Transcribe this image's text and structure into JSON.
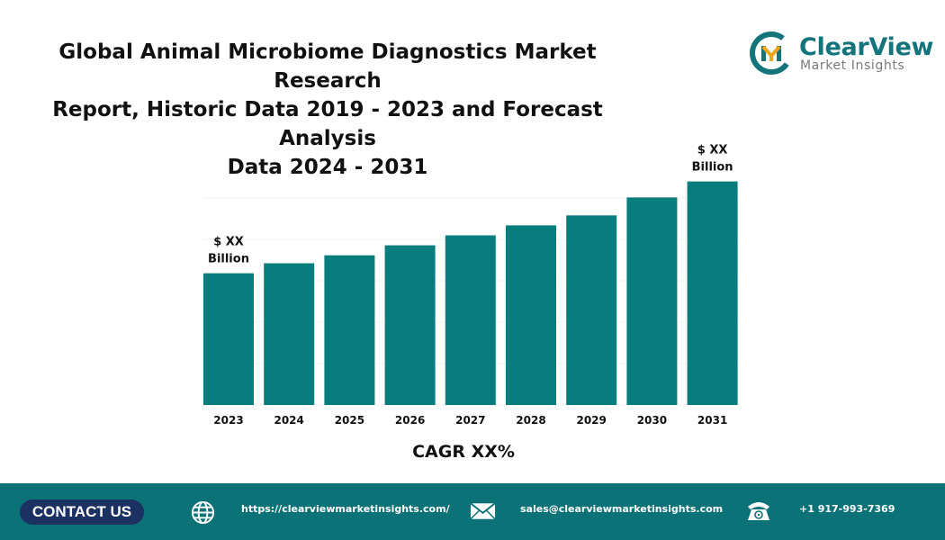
{
  "report": {
    "title_lines": [
      "Global Animal Microbiome Diagnostics Market Research",
      "Report, Historic Data 2019 - 2023 and Forecast Analysis",
      "Data 2024 - 2031"
    ]
  },
  "brand": {
    "name": "ClearView",
    "tagline": "Market Insights",
    "color_primary": "#13757b",
    "color_accent": "#f2a51a"
  },
  "chart_data": {
    "type": "bar",
    "categories": [
      "2023",
      "2024",
      "2025",
      "2026",
      "2027",
      "2028",
      "2029",
      "2030",
      "2031"
    ],
    "values": [
      33,
      35.5,
      37.5,
      40,
      42.5,
      45,
      47.5,
      52,
      56
    ],
    "ylim": [
      0,
      62
    ],
    "grid": true,
    "bar_color": "#077d7d",
    "annotations": [
      {
        "category": "2023",
        "lines": [
          "$ XX",
          "Billion"
        ]
      },
      {
        "category": "2031",
        "lines": [
          "$ XX",
          "Billion"
        ]
      }
    ],
    "cagr_label": "CAGR XX%"
  },
  "footer": {
    "contact_label": "CONTACT US",
    "website": "https://clearviewmarketinsights.com/",
    "email": "sales@clearviewmarketinsights.com",
    "phone": "+1 917-993-7369",
    "background": "#0b7378",
    "button_color": "#1b3162"
  }
}
